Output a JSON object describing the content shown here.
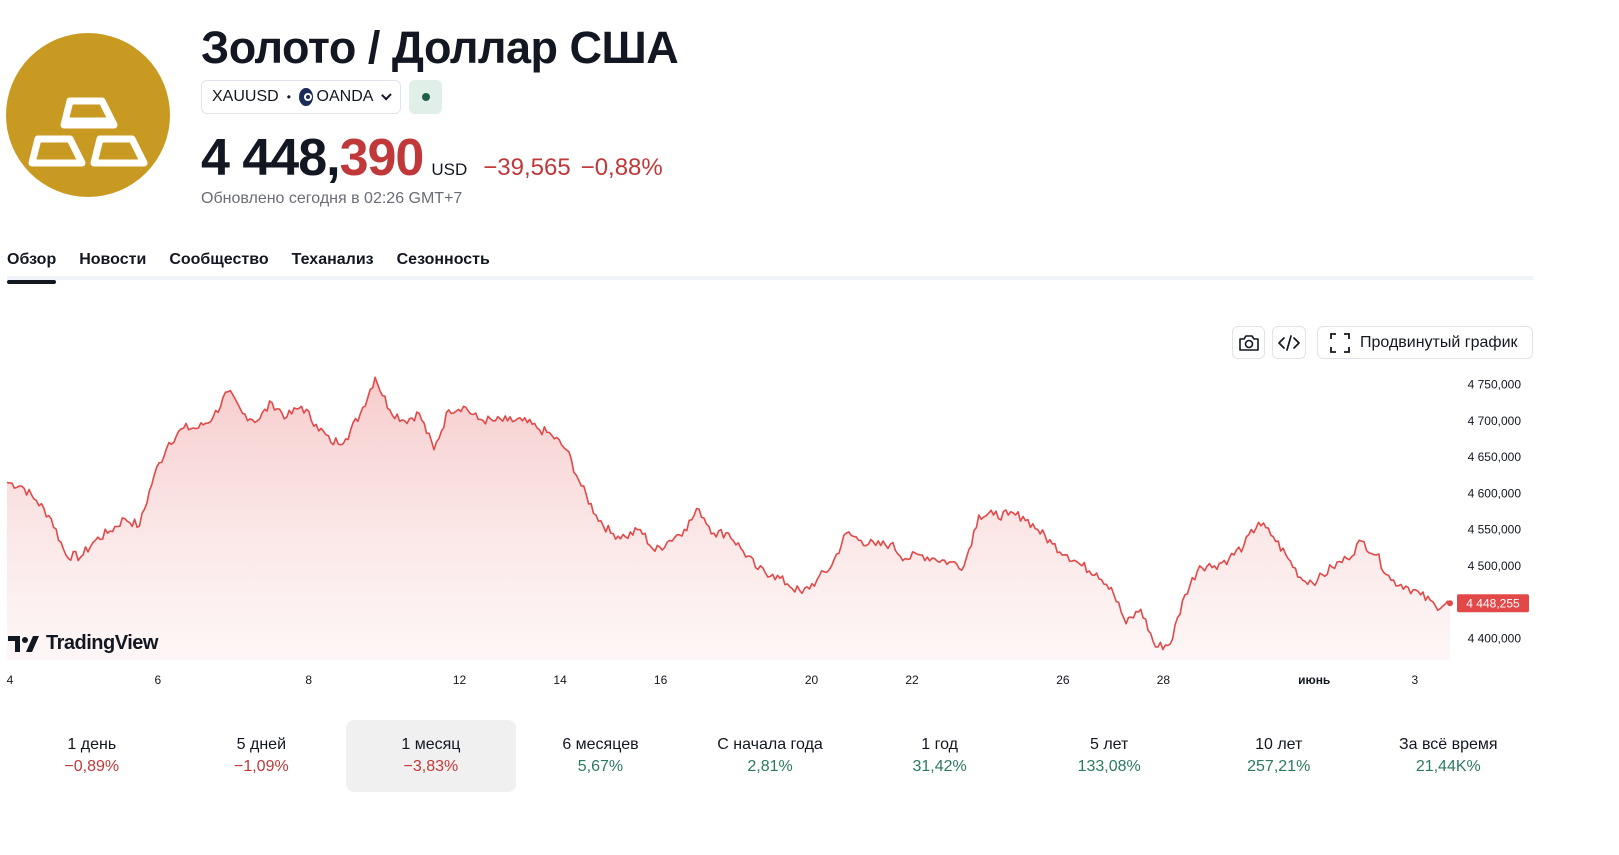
{
  "header": {
    "title": "Золото / Доллар США",
    "symbol": "XAUUSD",
    "separator": "•",
    "exchange": "OANDA",
    "price_main": "4 448,",
    "price_frac": "390",
    "currency": "USD",
    "change_abs": "−39,565",
    "change_pct": "−0,88%",
    "updated": "Обновлено сегодня в 02:26 GMT+7"
  },
  "tabs": [
    {
      "label": "Обзор",
      "active": true
    },
    {
      "label": "Новости"
    },
    {
      "label": "Сообщество"
    },
    {
      "label": "Теханализ"
    },
    {
      "label": "Сезонность"
    }
  ],
  "toolbar": {
    "camera_icon": "camera-icon",
    "embed_icon": "code-icon",
    "advanced_icon": "fullscreen-icon",
    "advanced_label": "Продвинутый график"
  },
  "branding": {
    "tradingview": "TradingView"
  },
  "colors": {
    "line": "#e34848",
    "fill_top": "#f6c9c9",
    "negative": "#c1383a",
    "positive": "#2c7a5d",
    "logo_bg": "#c99a22"
  },
  "chart_data": {
    "type": "area",
    "title": "",
    "xlabel": "",
    "ylabel": "",
    "ylim": [
      4370,
      4770
    ],
    "yticks": [
      "4 750,000",
      "4 700,000",
      "4 650,000",
      "4 600,000",
      "4 550,000",
      "4 500,000",
      "4 400,000"
    ],
    "ytick_values": [
      4750,
      4700,
      4650,
      4600,
      4550,
      4500,
      4400
    ],
    "xticks": [
      "4",
      "6",
      "8",
      "12",
      "14",
      "16",
      "20",
      "22",
      "26",
      "28",
      "июнь",
      "3"
    ],
    "xtick_positions": [
      0,
      3,
      6,
      9,
      11,
      13,
      16,
      18,
      21,
      23,
      26,
      28
    ],
    "last_value_label": "4 448,255",
    "last_value": 4448.255,
    "series": [
      {
        "values": [
          4615,
          4610,
          4590,
          4565,
          4515,
          4512,
          4535,
          4548,
          4565,
          4555,
          4625,
          4670,
          4690,
          4690,
          4705,
          4740,
          4710,
          4700,
          4725,
          4705,
          4720,
          4695,
          4670,
          4675,
          4710,
          4760,
          4715,
          4700,
          4710,
          4660,
          4715,
          4720,
          4702,
          4700,
          4700,
          4700,
          4690,
          4680,
          4660,
          4610,
          4570,
          4545,
          4540,
          4550,
          4520,
          4535,
          4550,
          4578,
          4545,
          4545,
          4520,
          4495,
          4488,
          4475,
          4462,
          4480,
          4500,
          4545,
          4535,
          4528,
          4530,
          4510,
          4515,
          4510,
          4505,
          4500,
          4570,
          4570,
          4570,
          4568,
          4550,
          4530,
          4515,
          4500,
          4490,
          4470,
          4420,
          4440,
          4388,
          4392,
          4460,
          4500,
          4500,
          4510,
          4528,
          4560,
          4540,
          4510,
          4480,
          4480,
          4498,
          4510,
          4534,
          4515,
          4480,
          4472,
          4460,
          4445,
          4448
        ]
      }
    ]
  },
  "periods": [
    {
      "label": "1 день",
      "value": "−0,89%",
      "sign": "neg"
    },
    {
      "label": "5 дней",
      "value": "−1,09%",
      "sign": "neg"
    },
    {
      "label": "1 месяц",
      "value": "−3,83%",
      "sign": "neg",
      "active": true
    },
    {
      "label": "6 месяцев",
      "value": "5,67%",
      "sign": "pos"
    },
    {
      "label": "С начала года",
      "value": "2,81%",
      "sign": "pos"
    },
    {
      "label": "1 год",
      "value": "31,42%",
      "sign": "pos"
    },
    {
      "label": "5 лет",
      "value": "133,08%",
      "sign": "pos"
    },
    {
      "label": "10 лет",
      "value": "257,21%",
      "sign": "pos"
    },
    {
      "label": "За всё время",
      "value": "21,44K%",
      "sign": "pos"
    }
  ]
}
